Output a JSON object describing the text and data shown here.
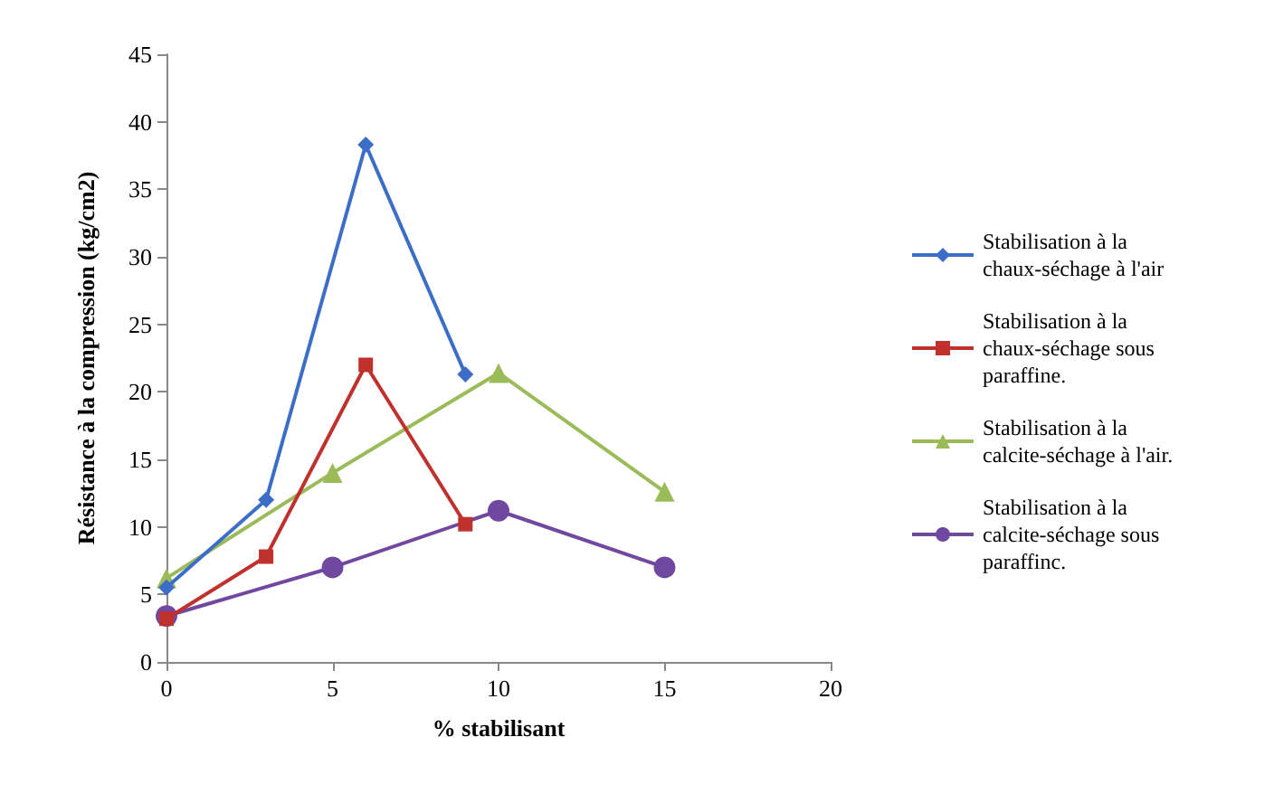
{
  "chart_data": {
    "type": "line",
    "xlabel": "% stabilisant",
    "ylabel": "Résistance à la compression (kg/cm2)",
    "xlim": [
      0,
      20
    ],
    "xticks": [
      0,
      5,
      10,
      15,
      20
    ],
    "ylim": [
      0,
      45
    ],
    "yticks": [
      0,
      5,
      10,
      15,
      20,
      25,
      30,
      35,
      40,
      45
    ],
    "grid": false,
    "legend": "right",
    "line_style": "solid",
    "series": [
      {
        "name": "Stabilisation à la chaux-séchage à l'air",
        "color": "#3c6ec8",
        "marker": "diamond",
        "x": [
          0,
          3,
          6,
          9
        ],
        "values": [
          5.5,
          12,
          38.3,
          21.3
        ]
      },
      {
        "name": "Stabilisation à la chaux-séchage sous paraffine.",
        "color": "#c0302d",
        "marker": "square",
        "x": [
          0,
          3,
          6,
          9
        ],
        "values": [
          3.2,
          7.8,
          22,
          10.2
        ]
      },
      {
        "name": "Stabilisation à la calcite-séchage à l'air.",
        "color": "#9bbb59",
        "marker": "triangle",
        "x": [
          0,
          5,
          10,
          15
        ],
        "values": [
          6.2,
          14,
          21.4,
          12.6
        ]
      },
      {
        "name": "Stabilisation à la calcite-séchage sous paraffinc.",
        "color": "#7048a0",
        "marker": "circle",
        "x": [
          0,
          5,
          10,
          15
        ],
        "values": [
          3.4,
          7,
          11.2,
          7
        ]
      }
    ]
  }
}
